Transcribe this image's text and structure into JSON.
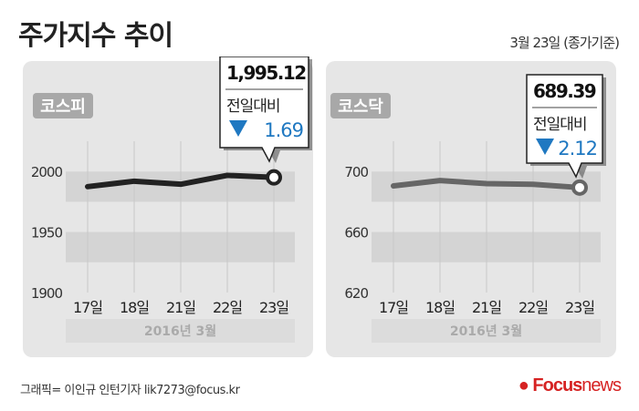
{
  "header": {
    "title": "주가지수 추이",
    "basis": "3월 23일 (종가기준)"
  },
  "footer": {
    "credit": "그래픽= 이인규 인턴기자 lik7273@focus.kr",
    "logo_bold": "Focus",
    "logo_light": "news"
  },
  "chart_data": [
    {
      "type": "line",
      "title": "코스피",
      "categories": [
        "17일",
        "18일",
        "21일",
        "22일",
        "23일"
      ],
      "values": [
        1987.5,
        1992,
        1989.5,
        1996.81,
        1995.12
      ],
      "yticks": [
        1900,
        1950,
        2000
      ],
      "ylim": [
        1900,
        2025
      ],
      "xlabel": "2016년  3월",
      "line_color": "#222222",
      "callout": {
        "value": "1,995.12",
        "label": "전일대비",
        "change": "1.69",
        "direction": "down"
      }
    },
    {
      "type": "line",
      "title": "코스닥",
      "categories": [
        "17일",
        "18일",
        "21일",
        "22일",
        "23일"
      ],
      "values": [
        690.5,
        694,
        692,
        691.51,
        689.39
      ],
      "yticks": [
        620,
        660,
        700
      ],
      "ylim": [
        620,
        720
      ],
      "xlabel": "2016년  3월",
      "line_color": "#666666",
      "callout": {
        "value": "689.39",
        "label": "전일대비",
        "change": "2.12",
        "direction": "down"
      }
    }
  ],
  "colors": {
    "change_down": "#1f78c1",
    "panel": "#e6e6e6",
    "band": "#d4d4d4",
    "badge": "#a8a8a8"
  }
}
